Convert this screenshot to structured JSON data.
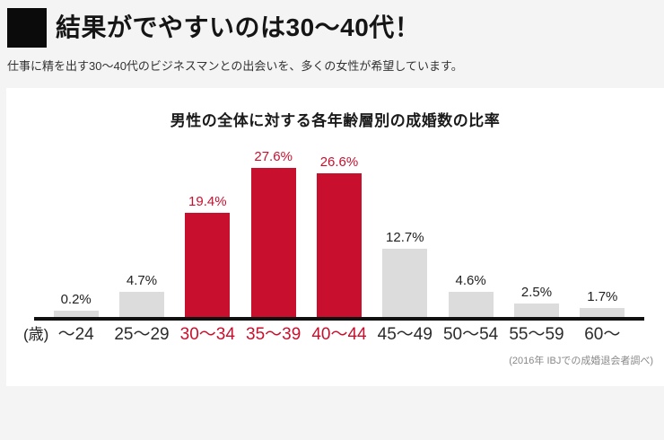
{
  "page": {
    "background": "#f4f4f5",
    "card_background": "#ffffff"
  },
  "header": {
    "title": "結果がでやすいのは30〜40代！",
    "subtitle": "仕事に精を出す30〜40代のビジネスマンとの出会いを、多くの女性が希望しています。"
  },
  "chart_data": {
    "type": "bar",
    "title": "男性の全体に対する各年齢層別の成婚数の比率",
    "unit_label": "(歳)",
    "categories": [
      "〜24",
      "25〜29",
      "30〜34",
      "35〜39",
      "40〜44",
      "45〜49",
      "50〜54",
      "55〜59",
      "60〜"
    ],
    "values": [
      0.2,
      4.7,
      19.4,
      27.6,
      26.6,
      12.7,
      4.6,
      2.5,
      1.7
    ],
    "value_labels": [
      "0.2%",
      "4.7%",
      "19.4%",
      "27.6%",
      "26.6%",
      "12.7%",
      "4.6%",
      "2.5%",
      "1.7%"
    ],
    "highlighted": [
      false,
      false,
      true,
      true,
      true,
      false,
      false,
      false,
      false
    ],
    "colors": {
      "highlight": "#c8102e",
      "normal": "#dcdcdc",
      "axis": "#111111"
    },
    "ylim": [
      0,
      30
    ],
    "grid": false,
    "legend": false,
    "source_note": "(2016年 IBJでの成婚退会者調べ)"
  }
}
